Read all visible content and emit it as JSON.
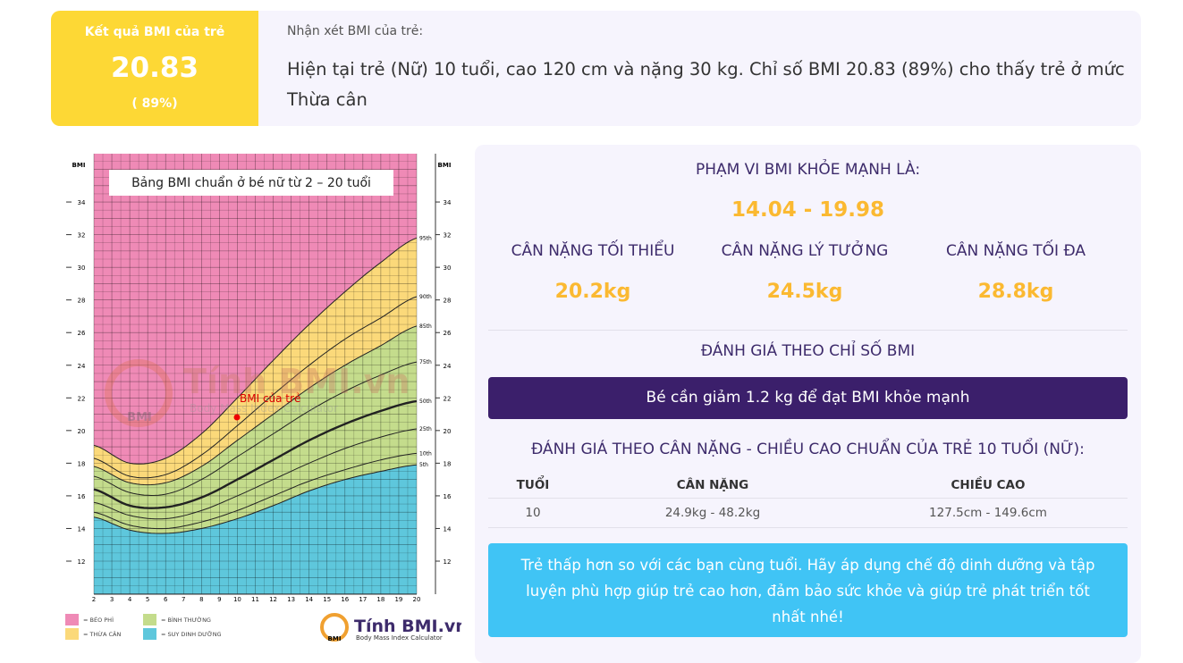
{
  "result": {
    "label": "Kết quả BMI của trẻ",
    "bmi": "20.83",
    "percentile": "( 89%)"
  },
  "comment": {
    "label": "Nhận xét BMI của trẻ:",
    "text": "Hiện tại trẻ (Nữ) 10 tuổi, cao 120 cm và nặng 30 kg. Chỉ số BMI 20.83 (89%) cho thấy trẻ ở mức Thừa cân"
  },
  "bmi_chart": {
    "title": "Bảng BMI chuẩn ở bé nữ từ 2 – 20 tuổi",
    "axis_label": "BMI",
    "y_ticks": [
      "12",
      "14",
      "16",
      "18",
      "20",
      "22",
      "24",
      "26",
      "28",
      "30",
      "32",
      "34"
    ],
    "x_ticks": [
      "2",
      "3",
      "4",
      "5",
      "6",
      "7",
      "8",
      "9",
      "10",
      "11",
      "12",
      "13",
      "14",
      "15",
      "16",
      "17",
      "18",
      "19",
      "20"
    ],
    "percentiles": [
      "95th",
      "90th",
      "85th",
      "75th",
      "50th",
      "25th",
      "10th",
      "5th"
    ],
    "marker_label": "BMI của trẻ",
    "legend": [
      "= BÉO PHÌ",
      "= THỪA CÂN",
      "= BÌNH THƯỜNG",
      "= SUY DINH DƯỠNG"
    ],
    "logo": {
      "name": "Tính BMI.vn",
      "tagline": "Body Mass Index Calculator",
      "badge": "BMI"
    }
  },
  "healthy_range": {
    "label": "PHẠM VI BMI KHỎE MẠNH LÀ:",
    "value": "14.04 - 19.98"
  },
  "weights": [
    {
      "label": "CÂN NẶNG TỐI THIỂU",
      "value": "20.2kg"
    },
    {
      "label": "CÂN NẶNG LÝ TƯỞNG",
      "value": "24.5kg"
    },
    {
      "label": "CÂN NẶNG TỐI ĐA",
      "value": "28.8kg"
    }
  ],
  "bmi_assessment": {
    "label": "ĐÁNH GIÁ THEO CHỈ SỐ BMI",
    "message": "Bé cần giảm 1.2 kg để đạt BMI khỏe mạnh"
  },
  "standard": {
    "label": "ĐÁNH GIÁ THEO CÂN NẶNG - CHIỀU CAO CHUẨN CỦA TRẺ 10 TUỔI (NỮ):",
    "headers": [
      "TUỔI",
      "CÂN NẶNG",
      "CHIỀU CAO"
    ],
    "row": [
      "10",
      "24.9kg - 48.2kg",
      "127.5cm - 149.6cm"
    ]
  },
  "advice": "Trẻ thấp hơn so với các bạn cùng tuổi. Hãy áp dụng chế độ dinh dưỡng và tập luyện phù hợp giúp trẻ cao hơn, đảm bảo sức khỏe và giúp trẻ phát triển tốt nhất nhé!"
}
